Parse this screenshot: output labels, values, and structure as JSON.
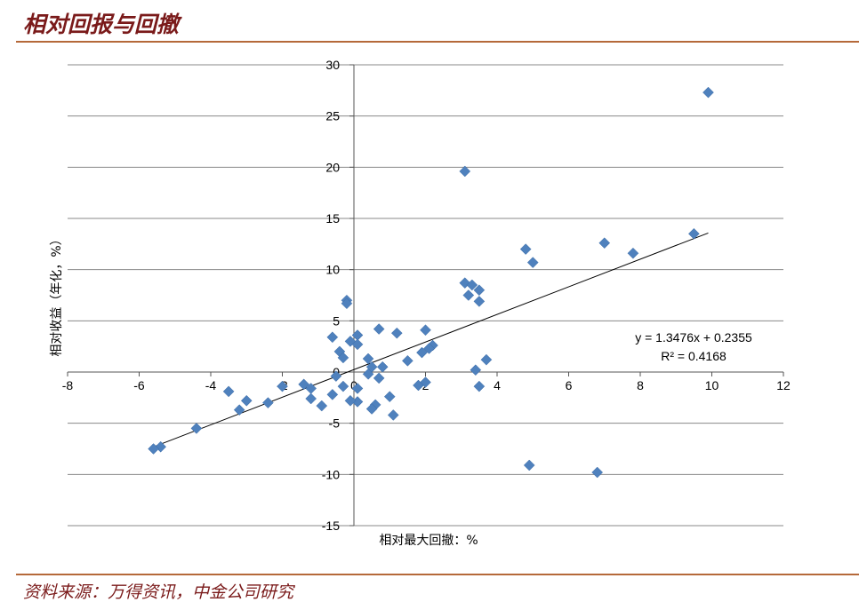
{
  "header": {
    "title": "相对回报与回撤"
  },
  "footer": {
    "source": "资料来源：万得资讯，中金公司研究"
  },
  "colors": {
    "marker": "#4f81bd",
    "title": "#7a1a1a",
    "rule": "#b5693a",
    "grid": "#888888"
  },
  "chart_data": {
    "type": "scatter",
    "title": "",
    "xlabel": "相对最大回撤：%",
    "ylabel": "相对收益（年化，%）",
    "xlim": [
      -8,
      12
    ],
    "ylim": [
      -15,
      30
    ],
    "xticks": [
      -8,
      -6,
      -4,
      -2,
      0,
      2,
      4,
      6,
      8,
      10,
      12
    ],
    "yticks": [
      -15,
      -10,
      -5,
      0,
      5,
      10,
      15,
      20,
      25,
      30
    ],
    "grid": "horizontal",
    "trendline": {
      "type": "linear",
      "slope": 1.3476,
      "intercept": 0.2355,
      "x_range": [
        -5.6,
        9.9
      ],
      "equation": "y = 1.3476x + 0.2355",
      "r_squared": "R² = 0.4168"
    },
    "points": [
      [
        9.9,
        27.3
      ],
      [
        3.1,
        19.6
      ],
      [
        9.5,
        13.5
      ],
      [
        7.0,
        12.6
      ],
      [
        4.8,
        12.0
      ],
      [
        7.8,
        11.6
      ],
      [
        5.0,
        10.7
      ],
      [
        3.1,
        8.7
      ],
      [
        3.3,
        8.5
      ],
      [
        3.5,
        8.0
      ],
      [
        3.2,
        7.5
      ],
      [
        3.5,
        6.9
      ],
      [
        -0.2,
        7.0
      ],
      [
        -0.2,
        6.7
      ],
      [
        0.7,
        4.2
      ],
      [
        2.0,
        4.1
      ],
      [
        1.2,
        3.8
      ],
      [
        -0.6,
        3.4
      ],
      [
        0.1,
        3.6
      ],
      [
        -0.1,
        3.0
      ],
      [
        0.1,
        2.7
      ],
      [
        2.2,
        2.6
      ],
      [
        2.1,
        2.3
      ],
      [
        -0.4,
        2.0
      ],
      [
        1.9,
        1.9
      ],
      [
        -0.3,
        1.4
      ],
      [
        0.4,
        1.3
      ],
      [
        1.5,
        1.1
      ],
      [
        3.7,
        1.2
      ],
      [
        0.5,
        0.5
      ],
      [
        0.8,
        0.5
      ],
      [
        3.4,
        0.2
      ],
      [
        0.4,
        -0.2
      ],
      [
        -0.5,
        -0.4
      ],
      [
        0.7,
        -0.6
      ],
      [
        -1.4,
        -1.2
      ],
      [
        -2.0,
        -1.4
      ],
      [
        -1.2,
        -1.6
      ],
      [
        -0.3,
        -1.4
      ],
      [
        0.1,
        -1.6
      ],
      [
        2.0,
        -1.0
      ],
      [
        1.8,
        -1.3
      ],
      [
        3.5,
        -1.4
      ],
      [
        -3.5,
        -1.9
      ],
      [
        -0.6,
        -2.2
      ],
      [
        1.0,
        -2.4
      ],
      [
        -1.2,
        -2.6
      ],
      [
        -3.0,
        -2.8
      ],
      [
        -2.4,
        -3.0
      ],
      [
        0.1,
        -2.9
      ],
      [
        -0.1,
        -2.8
      ],
      [
        0.6,
        -3.2
      ],
      [
        0.5,
        -3.6
      ],
      [
        -0.9,
        -3.3
      ],
      [
        -3.2,
        -3.7
      ],
      [
        1.1,
        -4.2
      ],
      [
        -4.4,
        -5.5
      ],
      [
        -5.4,
        -7.3
      ],
      [
        -5.6,
        -7.5
      ],
      [
        4.9,
        -9.1
      ],
      [
        6.8,
        -9.8
      ]
    ]
  }
}
